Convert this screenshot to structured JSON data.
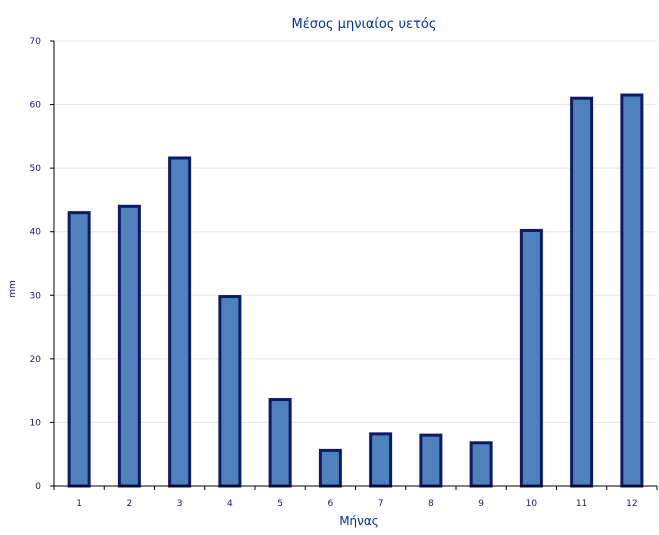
{
  "colors": {
    "title": "#003399",
    "text": "#1a1a66",
    "bar_fill": "#4f81bd",
    "bar_stroke": "#0d1a66",
    "axis": "#000000",
    "grid": "#e6e6e6"
  },
  "chart_data": {
    "type": "bar",
    "title": "Μέσος μηνιαίος υετός",
    "xlabel": "Μήνας",
    "ylabel": "mm",
    "categories": [
      "1",
      "2",
      "3",
      "4",
      "5",
      "6",
      "7",
      "8",
      "9",
      "10",
      "11",
      "12"
    ],
    "values": [
      43,
      44,
      51.6,
      29.8,
      13.6,
      5.6,
      8.2,
      8.0,
      6.8,
      40.2,
      61,
      61.5
    ],
    "ylim": [
      0,
      70
    ],
    "yticks": [
      "0",
      "10",
      "20",
      "30",
      "40",
      "50",
      "60",
      "70"
    ],
    "grid": true,
    "legend": "none"
  }
}
